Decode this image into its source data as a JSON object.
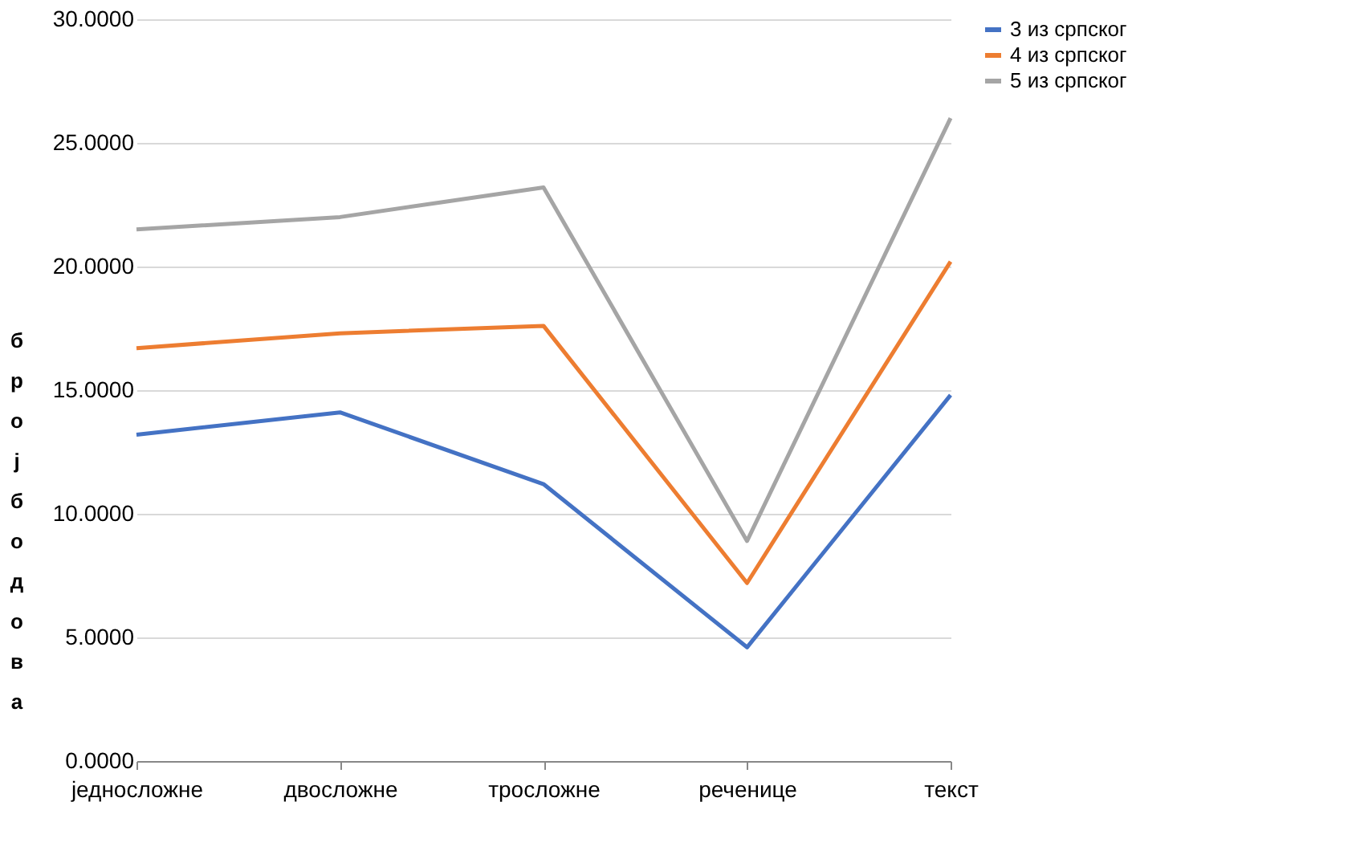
{
  "chart_data": {
    "type": "line",
    "ylabel": "број бодова",
    "categories": [
      "једносложне",
      "двосложне",
      "тросложне",
      "реченице",
      "текст"
    ],
    "series": [
      {
        "name": "3 из српског",
        "color": "#4472c4",
        "values": [
          13.2,
          14.1,
          11.2,
          4.6,
          14.8
        ]
      },
      {
        "name": "4 из српског",
        "color": "#ed7d31",
        "values": [
          16.7,
          17.3,
          17.6,
          7.2,
          20.2
        ]
      },
      {
        "name": "5 из српског",
        "color": "#a5a5a5",
        "values": [
          21.5,
          22.0,
          23.2,
          8.9,
          26.0
        ]
      }
    ],
    "ylim": [
      0,
      30
    ],
    "yticks": [
      {
        "value": 0,
        "label": "0.0000"
      },
      {
        "value": 5,
        "label": "5.0000"
      },
      {
        "value": 10,
        "label": "10.0000"
      },
      {
        "value": 15,
        "label": "15.0000"
      },
      {
        "value": 20,
        "label": "20.0000"
      },
      {
        "value": 25,
        "label": "25.0000"
      },
      {
        "value": 30,
        "label": "30.0000"
      }
    ],
    "grid": "y",
    "legend": "right",
    "marker": "none",
    "line_style": "solid"
  }
}
